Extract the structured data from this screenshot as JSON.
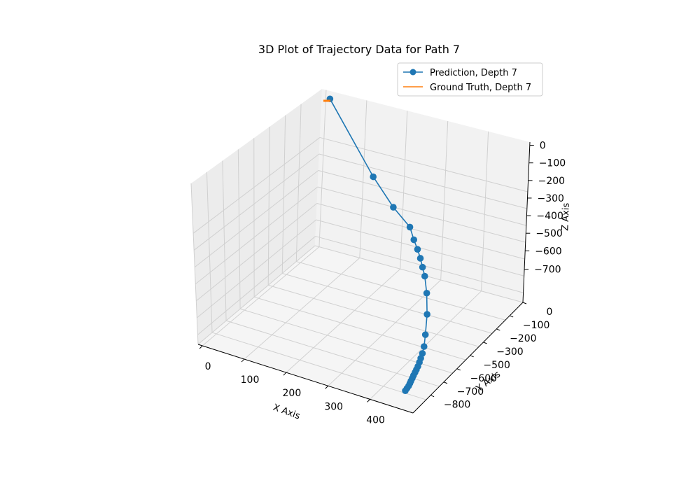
{
  "chart_data": {
    "type": "line",
    "projection": "3d",
    "title": "3D Plot of Trajectory Data for Path 7",
    "xlabel": "X Axis",
    "ylabel": "Y Axis",
    "zlabel": "Z Axis",
    "xticks": [
      "0",
      "100",
      "200",
      "300",
      "400"
    ],
    "yticks": [
      "0",
      "−100",
      "−200",
      "−300",
      "−500",
      "−600",
      "−700",
      "−800"
    ],
    "zticks": [
      "0",
      "−100",
      "−200",
      "−300",
      "−400",
      "−500",
      "−600",
      "−700"
    ],
    "grid": true,
    "legend_position": "top-right",
    "series": [
      {
        "name": "Prediction, Depth 7",
        "color": "#1f77b4",
        "marker": "circle",
        "points": [
          [
            0,
            0,
            0
          ],
          [
            150,
            -110,
            -240
          ],
          [
            214,
            -150,
            -330
          ],
          [
            265,
            -180,
            -380
          ],
          [
            282,
            -200,
            -420
          ],
          [
            298,
            -220,
            -445
          ],
          [
            312,
            -240,
            -468
          ],
          [
            325,
            -262,
            -490
          ],
          [
            338,
            -284,
            -512
          ],
          [
            356,
            -322,
            -560
          ],
          [
            378,
            -384,
            -610
          ],
          [
            398,
            -456,
            -650
          ],
          [
            410,
            -502,
            -670
          ],
          [
            416,
            -532,
            -680
          ],
          [
            420,
            -556,
            -685
          ],
          [
            423,
            -575,
            -690
          ],
          [
            426,
            -595,
            -695
          ],
          [
            428,
            -612,
            -698
          ],
          [
            430,
            -628,
            -700
          ],
          [
            432,
            -645,
            -702
          ],
          [
            434,
            -660,
            -704
          ],
          [
            436,
            -676,
            -706
          ],
          [
            438,
            -690,
            -707
          ],
          [
            440,
            -705,
            -708
          ],
          [
            441,
            -720,
            -709
          ],
          [
            442,
            -735,
            -710
          ]
        ]
      },
      {
        "name": "Ground Truth, Depth 7",
        "color": "#ff7f0e",
        "marker": "none",
        "points": [
          [
            0,
            0,
            0
          ],
          [
            1,
            0,
            0
          ]
        ]
      }
    ]
  }
}
